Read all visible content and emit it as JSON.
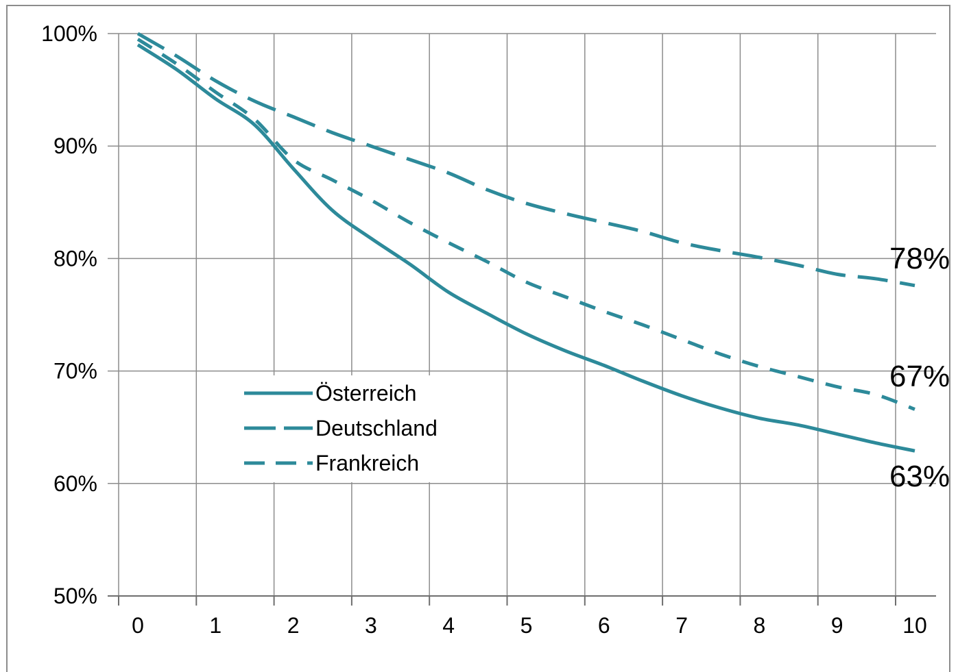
{
  "chart_data": {
    "type": "line",
    "x": [
      0,
      0.5,
      1,
      1.5,
      2,
      2.5,
      3,
      3.5,
      4,
      4.5,
      5,
      5.5,
      6,
      6.5,
      7,
      7.5,
      8,
      8.5,
      9,
      9.5,
      10
    ],
    "series": [
      {
        "name": "Österreich",
        "style": "solid",
        "values": [
          99.0,
          96.8,
          94.2,
          91.9,
          88.0,
          84.3,
          81.8,
          79.5,
          77.0,
          75.1,
          73.3,
          71.8,
          70.5,
          69.1,
          67.8,
          66.7,
          65.8,
          65.2,
          64.4,
          63.6,
          62.9
        ],
        "end_label": "63%"
      },
      {
        "name": "Deutschland",
        "style": "long-dash",
        "values": [
          100.0,
          98.0,
          95.8,
          94.0,
          92.6,
          91.2,
          90.0,
          88.8,
          87.6,
          86.1,
          84.9,
          84.0,
          83.2,
          82.4,
          81.4,
          80.7,
          80.1,
          79.4,
          78.6,
          78.2,
          77.6
        ],
        "end_label": "78%"
      },
      {
        "name": "Frankreich",
        "style": "short-dash",
        "values": [
          99.5,
          97.3,
          94.8,
          92.4,
          88.8,
          87.0,
          85.2,
          83.2,
          81.4,
          79.7,
          77.9,
          76.6,
          75.3,
          74.1,
          72.8,
          71.5,
          70.4,
          69.5,
          68.6,
          67.9,
          66.6
        ],
        "end_label": "67%"
      }
    ],
    "x_ticks": [
      "0",
      "1",
      "2",
      "3",
      "4",
      "5",
      "6",
      "7",
      "8",
      "9",
      "10"
    ],
    "y_ticks": [
      "100%",
      "90%",
      "80%",
      "70%",
      "60%",
      "50%"
    ],
    "ylim": [
      50,
      100
    ],
    "xlim": [
      0,
      10
    ],
    "grid": true,
    "legend_position": "center-left",
    "colors": {
      "line": "#2d8a9a",
      "grid": "#8c8c8c"
    }
  }
}
